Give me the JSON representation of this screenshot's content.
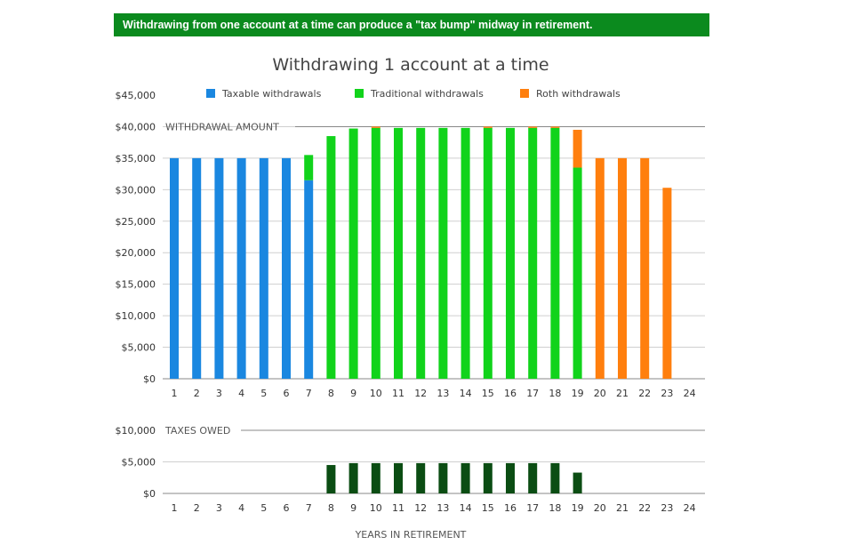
{
  "banner": {
    "text": "Withdrawing from one account at a time can produce a \"tax bump\" midway in retirement."
  },
  "colors": {
    "banner_bg": "#0b8a1e",
    "taxable": "#1a87e0",
    "traditional": "#11d31b",
    "roth": "#ff7f0e",
    "taxes": "#0b4d13",
    "grid": "#cfcfcf",
    "axis": "#888888"
  },
  "chart_data": [
    {
      "type": "bar",
      "stacked": true,
      "title": "Withdrawing 1 account at a time",
      "inline_label": "WITHDRAWAL AMOUNT",
      "categories": [
        "1",
        "2",
        "3",
        "4",
        "5",
        "6",
        "7",
        "8",
        "9",
        "10",
        "11",
        "12",
        "13",
        "14",
        "15",
        "16",
        "17",
        "18",
        "19",
        "20",
        "21",
        "22",
        "23",
        "24"
      ],
      "ylim": [
        0,
        45000
      ],
      "yticks": [
        0,
        5000,
        10000,
        15000,
        20000,
        25000,
        30000,
        35000,
        40000,
        45000
      ],
      "ytick_labels": [
        "$0",
        "$5,000",
        "$10,000",
        "$15,000",
        "$20,000",
        "$25,000",
        "$30,000",
        "$35,000",
        "$40,000",
        "$45,000"
      ],
      "grid": true,
      "legend_position": "top",
      "series": [
        {
          "name": "Taxable withdrawals",
          "color": "#1a87e0",
          "values": [
            35000,
            35000,
            35000,
            35000,
            35000,
            35000,
            31500,
            0,
            0,
            0,
            0,
            0,
            0,
            0,
            0,
            0,
            0,
            0,
            0,
            0,
            0,
            0,
            0,
            0
          ]
        },
        {
          "name": "Traditional withdrawals",
          "color": "#11d31b",
          "values": [
            0,
            0,
            0,
            0,
            0,
            0,
            4000,
            38500,
            39700,
            39800,
            39800,
            39800,
            39800,
            39800,
            39800,
            39800,
            39800,
            39800,
            33500,
            0,
            0,
            0,
            0,
            0
          ]
        },
        {
          "name": "Roth withdrawals",
          "color": "#ff7f0e",
          "values": [
            0,
            0,
            0,
            0,
            0,
            0,
            0,
            0,
            0,
            200,
            0,
            0,
            0,
            0,
            200,
            0,
            200,
            200,
            6000,
            35000,
            35000,
            35000,
            30300,
            0
          ]
        }
      ]
    },
    {
      "type": "bar",
      "inline_label": "TAXES OWED",
      "categories": [
        "1",
        "2",
        "3",
        "4",
        "5",
        "6",
        "7",
        "8",
        "9",
        "10",
        "11",
        "12",
        "13",
        "14",
        "15",
        "16",
        "17",
        "18",
        "19",
        "20",
        "21",
        "22",
        "23",
        "24"
      ],
      "ylim": [
        0,
        10000
      ],
      "yticks": [
        0,
        5000,
        10000
      ],
      "ytick_labels": [
        "$0",
        "$5,000",
        "$10,000"
      ],
      "grid": true,
      "xlabel": "YEARS IN RETIREMENT",
      "series": [
        {
          "color": "#0b4d13",
          "values": [
            0,
            0,
            0,
            0,
            0,
            0,
            0,
            4500,
            4800,
            4800,
            4800,
            4800,
            4800,
            4800,
            4800,
            4800,
            4800,
            4800,
            3300,
            0,
            0,
            0,
            0,
            0
          ]
        }
      ]
    }
  ]
}
